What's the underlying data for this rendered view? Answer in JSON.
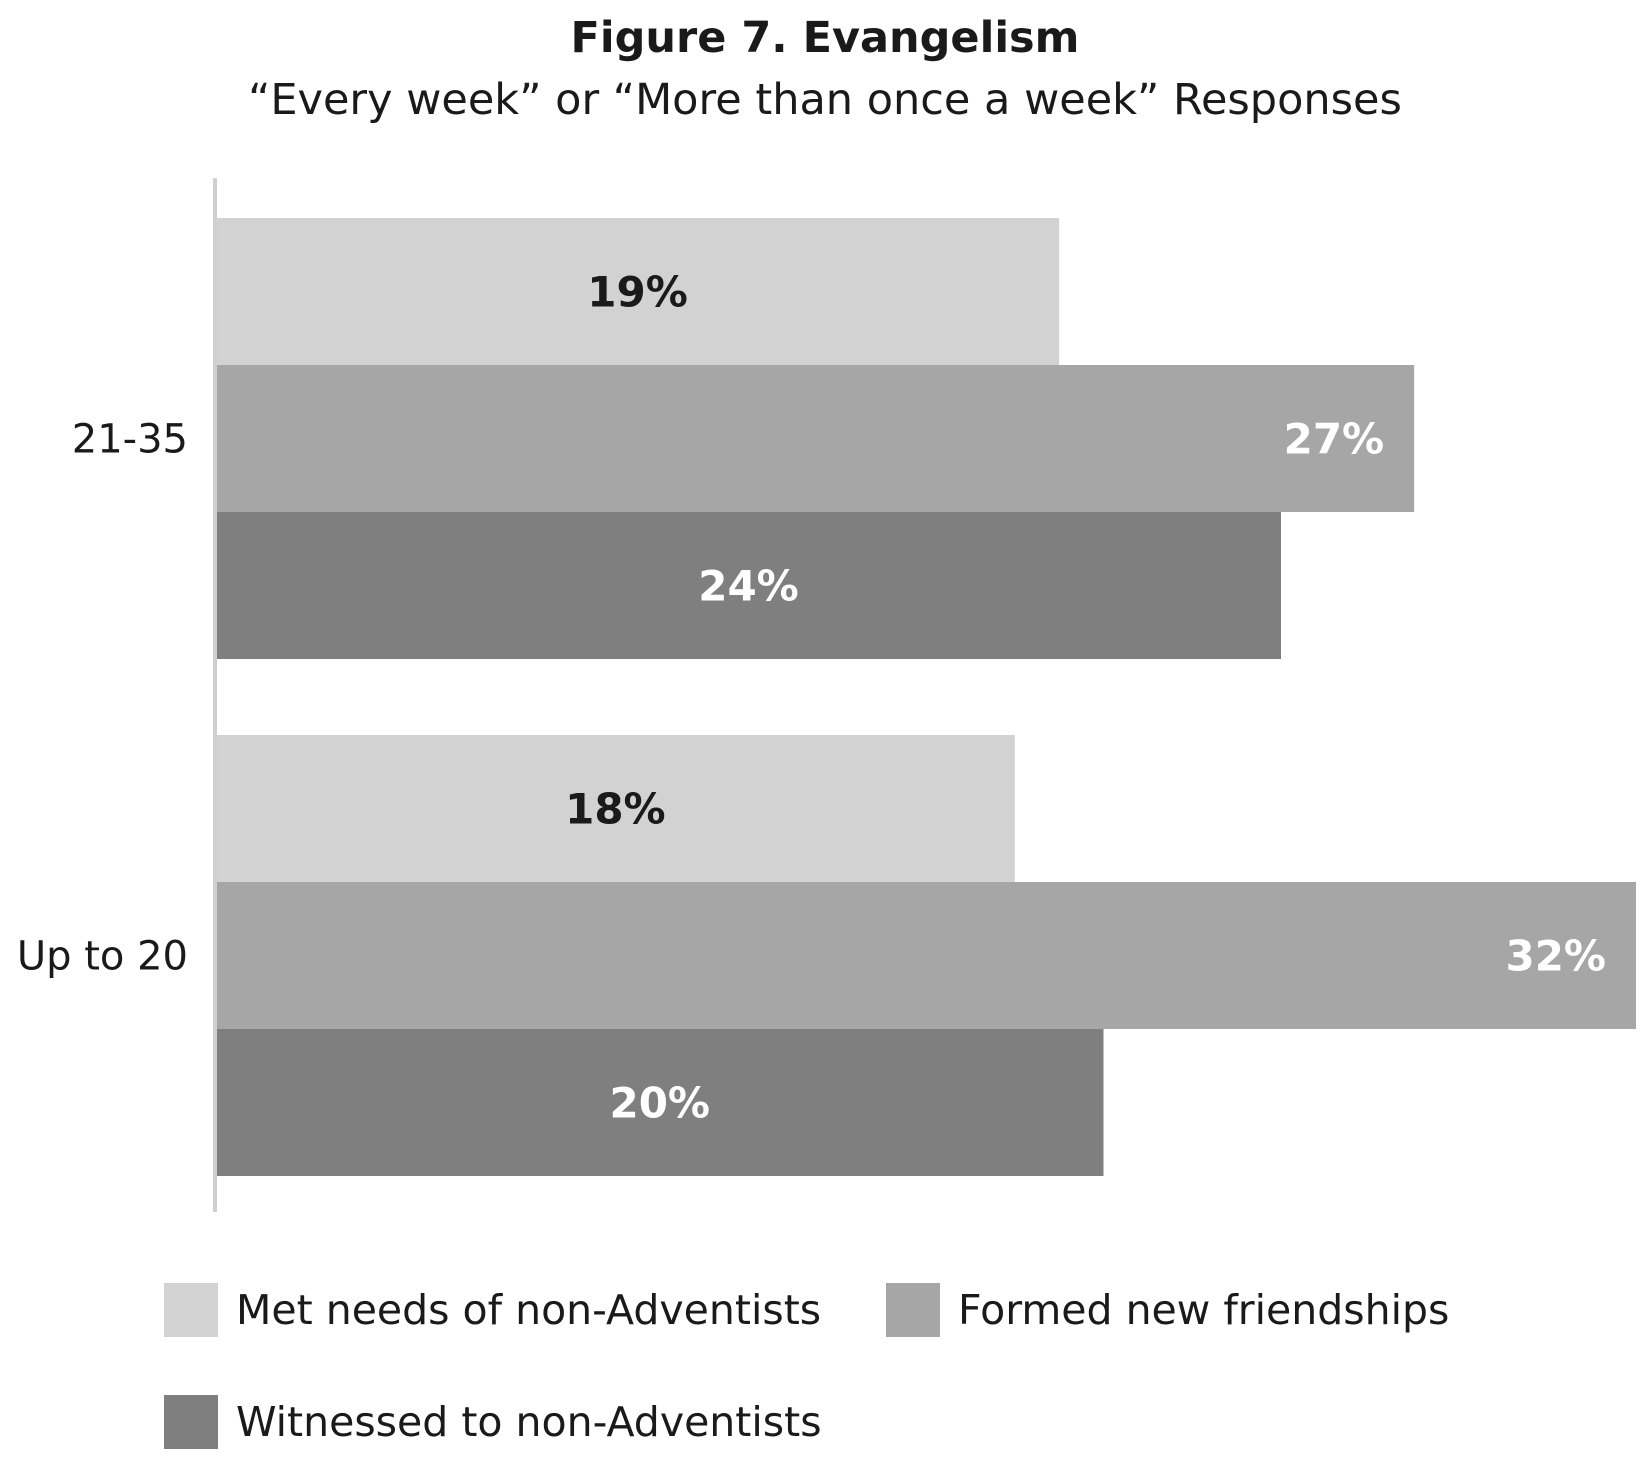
{
  "chart_data": {
    "type": "bar",
    "orientation": "horizontal",
    "title": "Figure 7. Evangelism",
    "subtitle": "“Every week” or “More than once a week” Responses",
    "categories": [
      "21-35",
      "Up to 20"
    ],
    "series": [
      {
        "name": "Met needs of non-Adventists",
        "values": [
          19,
          18
        ],
        "labels": [
          "19%",
          "18%"
        ],
        "color": "#d2d2d2",
        "label_color": "#1a1a1a"
      },
      {
        "name": "Formed new friendships",
        "values": [
          27,
          32
        ],
        "labels": [
          "27%",
          "32%"
        ],
        "color": "#a6a6a6",
        "label_color": "#ffffff"
      },
      {
        "name": "Witnessed to non-Adventists",
        "values": [
          24,
          20
        ],
        "labels": [
          "24%",
          "20%"
        ],
        "color": "#7f7f7f",
        "label_color": "#ffffff"
      }
    ],
    "xlim": [
      0,
      32
    ],
    "grid": false,
    "legend_position": "bottom"
  }
}
